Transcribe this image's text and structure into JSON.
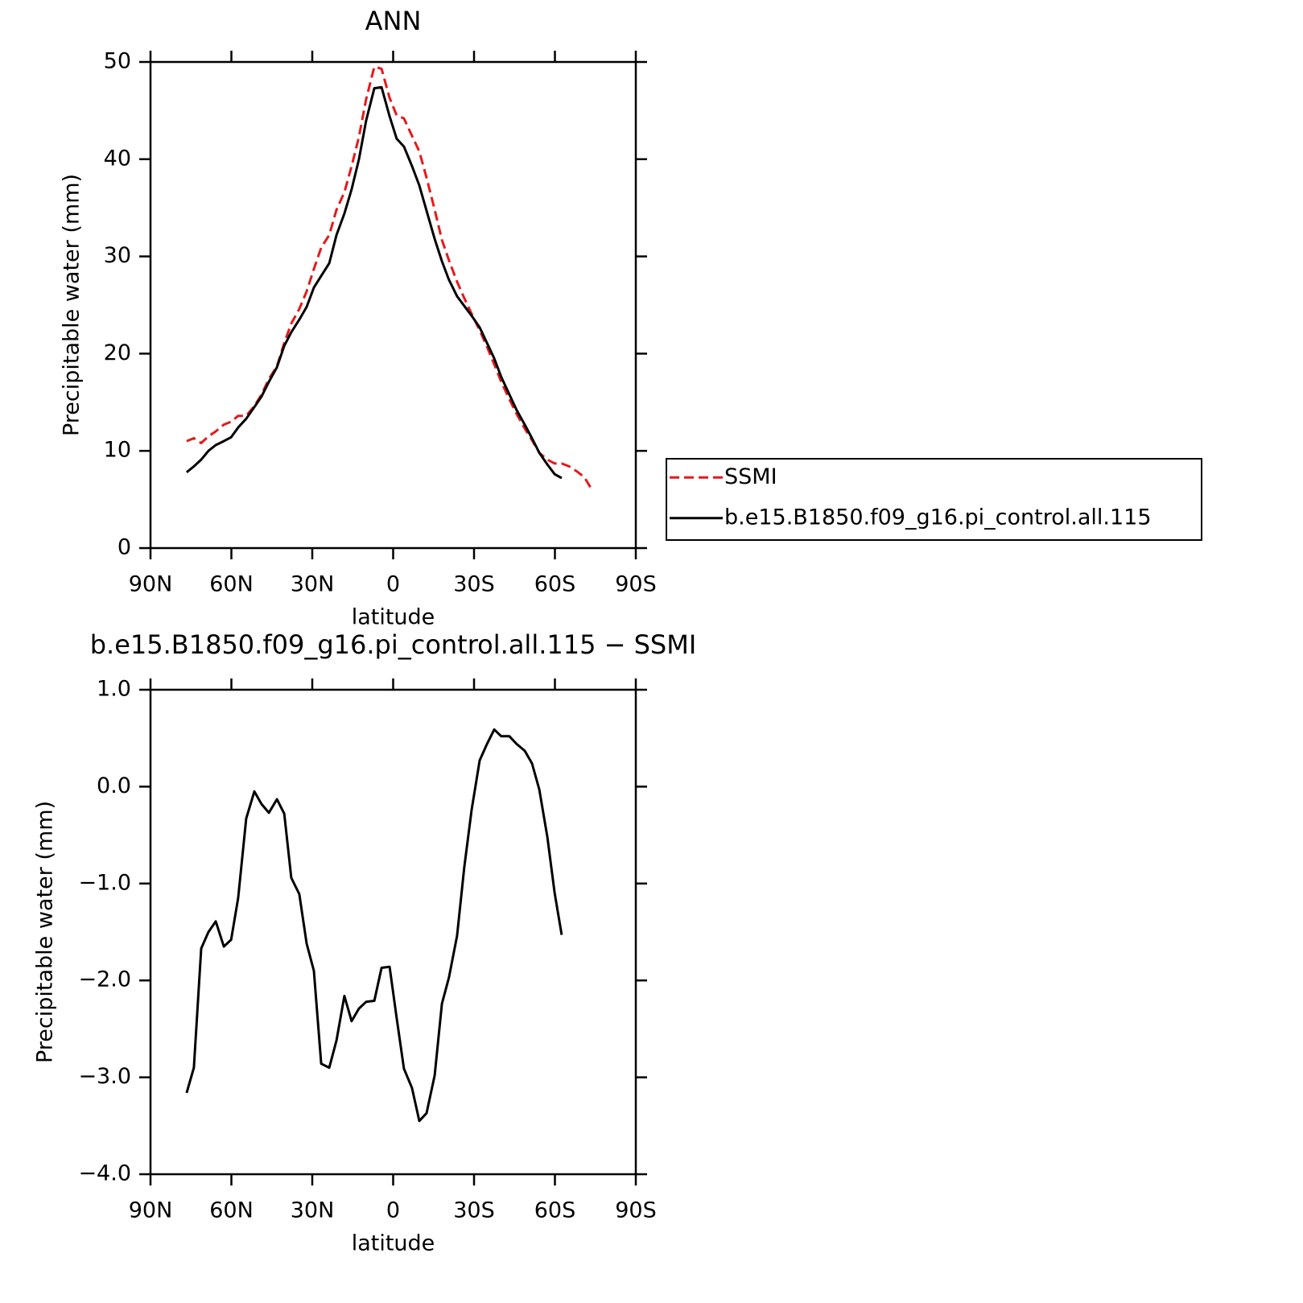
{
  "chart_data": [
    {
      "type": "line",
      "title": "ANN",
      "xlabel": "latitude",
      "ylabel": "Precipitable water (mm)",
      "x": [
        76.6,
        73.9,
        71.2,
        68.5,
        65.8,
        62.8,
        60.1,
        57.5,
        54.5,
        51.5,
        48.8,
        46.1,
        43.1,
        40.4,
        37.8,
        34.8,
        32.1,
        29.4,
        26.7,
        23.7,
        21.0,
        18.1,
        15.4,
        12.7,
        10.0,
        7.0,
        4.3,
        1.3,
        -1.3,
        -4.0,
        -7.0,
        -9.7,
        -12.4,
        -15.4,
        -18.1,
        -20.7,
        -23.7,
        -26.4,
        -29.1,
        -32.1,
        -34.8,
        -37.5,
        -40.1,
        -43.1,
        -45.8,
        -48.8,
        -51.5,
        -54.2,
        -57.2,
        -59.9,
        -62.5,
        -65.3,
        -68.1,
        -70.9,
        -73.7
      ],
      "series": [
        {
          "name": "SSMI",
          "color": "#e41a1c",
          "dash": true,
          "values": [
            11.0,
            11.3,
            10.8,
            11.5,
            12.0,
            12.7,
            13.0,
            13.6,
            13.6,
            14.6,
            15.8,
            17.4,
            18.7,
            21.1,
            23.1,
            24.6,
            26.4,
            28.7,
            30.9,
            32.2,
            34.8,
            36.6,
            39.3,
            42.3,
            46.2,
            49.5,
            49.3,
            46.3,
            44.5,
            44.2,
            42.4,
            40.8,
            38.1,
            34.8,
            31.7,
            29.6,
            27.4,
            25.7,
            24.1,
            22.4,
            20.7,
            18.9,
            17.1,
            15.3,
            13.8,
            12.3,
            11.1,
            9.8,
            9.1,
            8.7,
            8.7,
            8.4,
            7.9,
            7.3,
            6.0
          ]
        },
        {
          "name": "b.e15.B1850.f09_g16.pi_control.all.115",
          "color": "#000000",
          "dash": false,
          "values": [
            7.8,
            8.4,
            9.1,
            10.0,
            10.6,
            11.0,
            11.4,
            12.4,
            13.3,
            14.5,
            15.6,
            17.1,
            18.6,
            20.8,
            22.2,
            23.5,
            24.8,
            26.8,
            28.0,
            29.3,
            32.2,
            34.4,
            36.9,
            40.0,
            44.0,
            47.3,
            47.4,
            44.4,
            42.1,
            41.3,
            39.3,
            37.3,
            34.7,
            31.8,
            29.5,
            27.6,
            25.9,
            24.9,
            23.9,
            22.7,
            21.1,
            19.5,
            17.6,
            15.8,
            14.2,
            12.7,
            11.3,
            9.8,
            8.6,
            7.6,
            7.2,
            null,
            null,
            null,
            null
          ]
        }
      ],
      "xlim": [
        90,
        -90
      ],
      "xticks": [
        {
          "value": 90,
          "label": "90N"
        },
        {
          "value": 60,
          "label": "60N"
        },
        {
          "value": 30,
          "label": "30N"
        },
        0,
        {
          "value": -30,
          "label": "30S"
        },
        {
          "value": -60,
          "label": "60S"
        },
        {
          "value": -90,
          "label": "90S"
        }
      ],
      "ylim": [
        0,
        50
      ],
      "yticks": [
        0,
        10,
        20,
        30,
        40,
        50
      ],
      "legend": "right"
    },
    {
      "type": "line",
      "title": "b.e15.B1850.f09_g16.pi_control.all.115 − SSMI",
      "xlabel": "latitude",
      "ylabel": "Precipitable water (mm)",
      "x": [
        76.6,
        73.9,
        71.2,
        68.5,
        65.8,
        62.8,
        60.1,
        57.5,
        54.5,
        51.5,
        48.8,
        46.1,
        43.1,
        40.4,
        37.8,
        34.8,
        32.1,
        29.4,
        26.7,
        23.7,
        21.0,
        18.1,
        15.4,
        12.7,
        10.0,
        7.0,
        4.3,
        1.3,
        -1.3,
        -4.0,
        -7.0,
        -9.7,
        -12.4,
        -15.4,
        -18.1,
        -20.7,
        -23.7,
        -26.4,
        -29.1,
        -32.1,
        -34.8,
        -37.5,
        -40.1,
        -43.1,
        -45.8,
        -48.8,
        -51.5,
        -54.2,
        -57.2,
        -59.9,
        -62.5
      ],
      "series": [
        {
          "color": "#000000",
          "dash": false,
          "values": [
            -3.16,
            -2.9,
            -1.67,
            -1.5,
            -1.39,
            -1.65,
            -1.58,
            -1.15,
            -0.33,
            -0.05,
            -0.18,
            -0.27,
            -0.13,
            -0.28,
            -0.94,
            -1.11,
            -1.62,
            -1.9,
            -2.86,
            -2.9,
            -2.62,
            -2.16,
            -2.42,
            -2.29,
            -2.22,
            -2.21,
            -1.87,
            -1.86,
            -2.39,
            -2.91,
            -3.11,
            -3.45,
            -3.37,
            -2.98,
            -2.24,
            -1.97,
            -1.54,
            -0.83,
            -0.24,
            0.27,
            0.44,
            0.59,
            0.52,
            0.52,
            0.44,
            0.37,
            0.24,
            -0.03,
            -0.52,
            -1.1,
            -1.53
          ]
        }
      ],
      "xlim": [
        90,
        -90
      ],
      "xticks": [
        {
          "value": 90,
          "label": "90N"
        },
        {
          "value": 60,
          "label": "60N"
        },
        {
          "value": 30,
          "label": "30N"
        },
        0,
        {
          "value": -30,
          "label": "30S"
        },
        {
          "value": -60,
          "label": "60S"
        },
        {
          "value": -90,
          "label": "90S"
        }
      ],
      "ylim": [
        -4,
        1
      ],
      "yticks": [
        {
          "value": -4,
          "label": "−4.0"
        },
        {
          "value": -3,
          "label": "−3.0"
        },
        {
          "value": -2,
          "label": "−2.0"
        },
        {
          "value": -1,
          "label": "−1.0"
        },
        {
          "value": 0,
          "label": "0.0"
        },
        {
          "value": 1,
          "label": "1.0"
        }
      ]
    }
  ]
}
